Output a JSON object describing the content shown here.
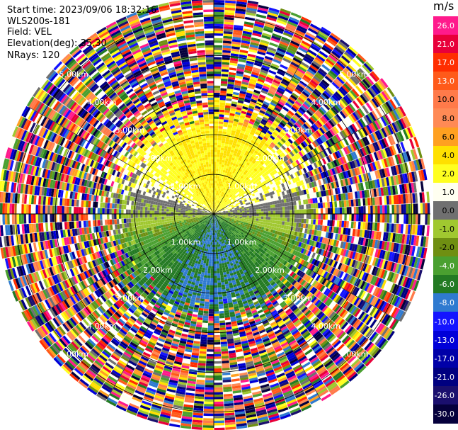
{
  "info": {
    "start_time": "Start time: 2023/09/06 18:32:16",
    "instrument": "WLS200s-181",
    "field": "Field: VEL",
    "elevation": "Elevation(deg): 35.30",
    "nrays": "NRays: 120"
  },
  "chart_data": {
    "type": "heatmap",
    "projection": "polar-ppi",
    "title": "",
    "field": "VEL",
    "units": "m/s",
    "elevation_deg": 35.3,
    "n_rays": 120,
    "range_rings_km": [
      1.0,
      2.0,
      3.0,
      4.0,
      5.0
    ],
    "range_ring_labels": [
      "1.00km",
      "2.00km",
      "3.00km",
      "4.00km",
      "5.00km"
    ],
    "max_range_km": 5.4,
    "grid": true,
    "legend_placement": "right",
    "colorbar": {
      "unit_label": "m/s",
      "bins": [
        {
          "label": "26.0",
          "color": "#ff1a8c"
        },
        {
          "label": "21.0",
          "color": "#e8003a"
        },
        {
          "label": "17.0",
          "color": "#ff2e00"
        },
        {
          "label": "13.0",
          "color": "#ff5a1a"
        },
        {
          "label": "10.0",
          "color": "#ff7a4a"
        },
        {
          "label": "8.0",
          "color": "#ff8a55"
        },
        {
          "label": "6.0",
          "color": "#ffa020"
        },
        {
          "label": "4.0",
          "color": "#ffe000"
        },
        {
          "label": "2.0",
          "color": "#ffff20"
        },
        {
          "label": "1.0",
          "color": "#fffff0"
        },
        {
          "label": "0.0",
          "color": "#707070"
        },
        {
          "label": "-1.0",
          "color": "#a0c830"
        },
        {
          "label": "-2.0",
          "color": "#6f8f12"
        },
        {
          "label": "-4.0",
          "color": "#4aa030"
        },
        {
          "label": "-6.0",
          "color": "#237a23"
        },
        {
          "label": "-8.0",
          "color": "#2f7ad0"
        },
        {
          "label": "-10.0",
          "color": "#1414ff"
        },
        {
          "label": "-13.0",
          "color": "#0000d8"
        },
        {
          "label": "-17.0",
          "color": "#0000a8"
        },
        {
          "label": "-21.0",
          "color": "#000080"
        },
        {
          "label": "-26.0",
          "color": "#1a0f6e"
        },
        {
          "label": "-30.0",
          "color": "#05003c"
        }
      ]
    },
    "structure": {
      "northern_half_dominant_velocity_ms": 4.0,
      "southern_half_dominant_velocity_ms": -6.0,
      "coherent_range_limit_km": 2.6,
      "far_range_noise": true
    }
  }
}
